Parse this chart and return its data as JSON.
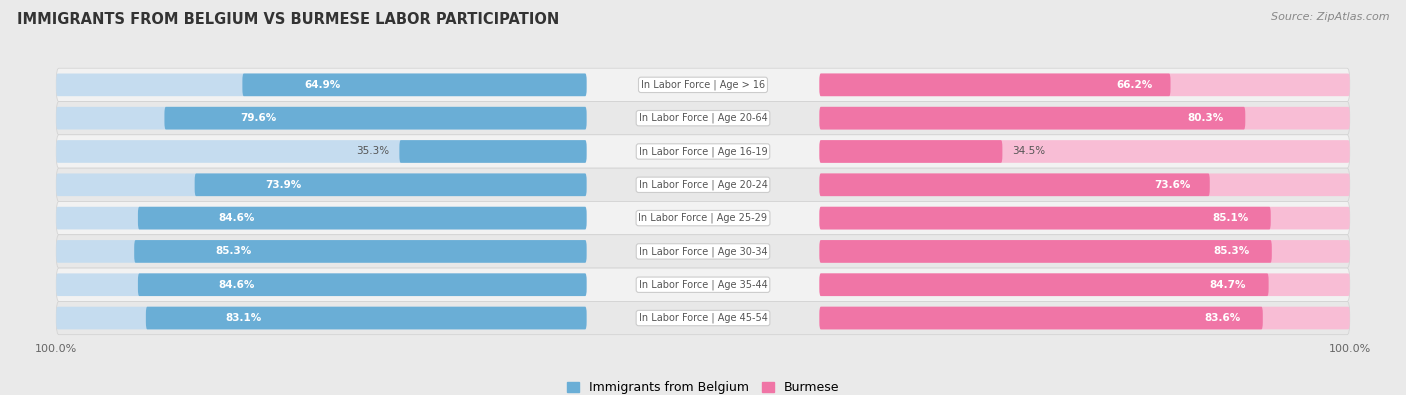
{
  "title": "IMMIGRANTS FROM BELGIUM VS BURMESE LABOR PARTICIPATION",
  "source": "Source: ZipAtlas.com",
  "categories": [
    "In Labor Force | Age > 16",
    "In Labor Force | Age 20-64",
    "In Labor Force | Age 16-19",
    "In Labor Force | Age 20-24",
    "In Labor Force | Age 25-29",
    "In Labor Force | Age 30-34",
    "In Labor Force | Age 35-44",
    "In Labor Force | Age 45-54"
  ],
  "belgium_values": [
    64.9,
    79.6,
    35.3,
    73.9,
    84.6,
    85.3,
    84.6,
    83.1
  ],
  "burmese_values": [
    66.2,
    80.3,
    34.5,
    73.6,
    85.1,
    85.3,
    84.7,
    83.6
  ],
  "belgium_color": "#6AAED6",
  "belgium_color_light": "#C5DCEF",
  "burmese_color": "#F075A6",
  "burmese_color_light": "#F8BDD5",
  "bg_color": "#EAEAEA",
  "row_bg_color": "#F2F2F2",
  "row_bg_alt": "#E8E8E8",
  "label_color": "#555555",
  "max_val": 100.0,
  "bar_height": 0.68,
  "inside_label_threshold": 45,
  "legend_label_belgium": "Immigrants from Belgium",
  "legend_label_burmese": "Burmese"
}
